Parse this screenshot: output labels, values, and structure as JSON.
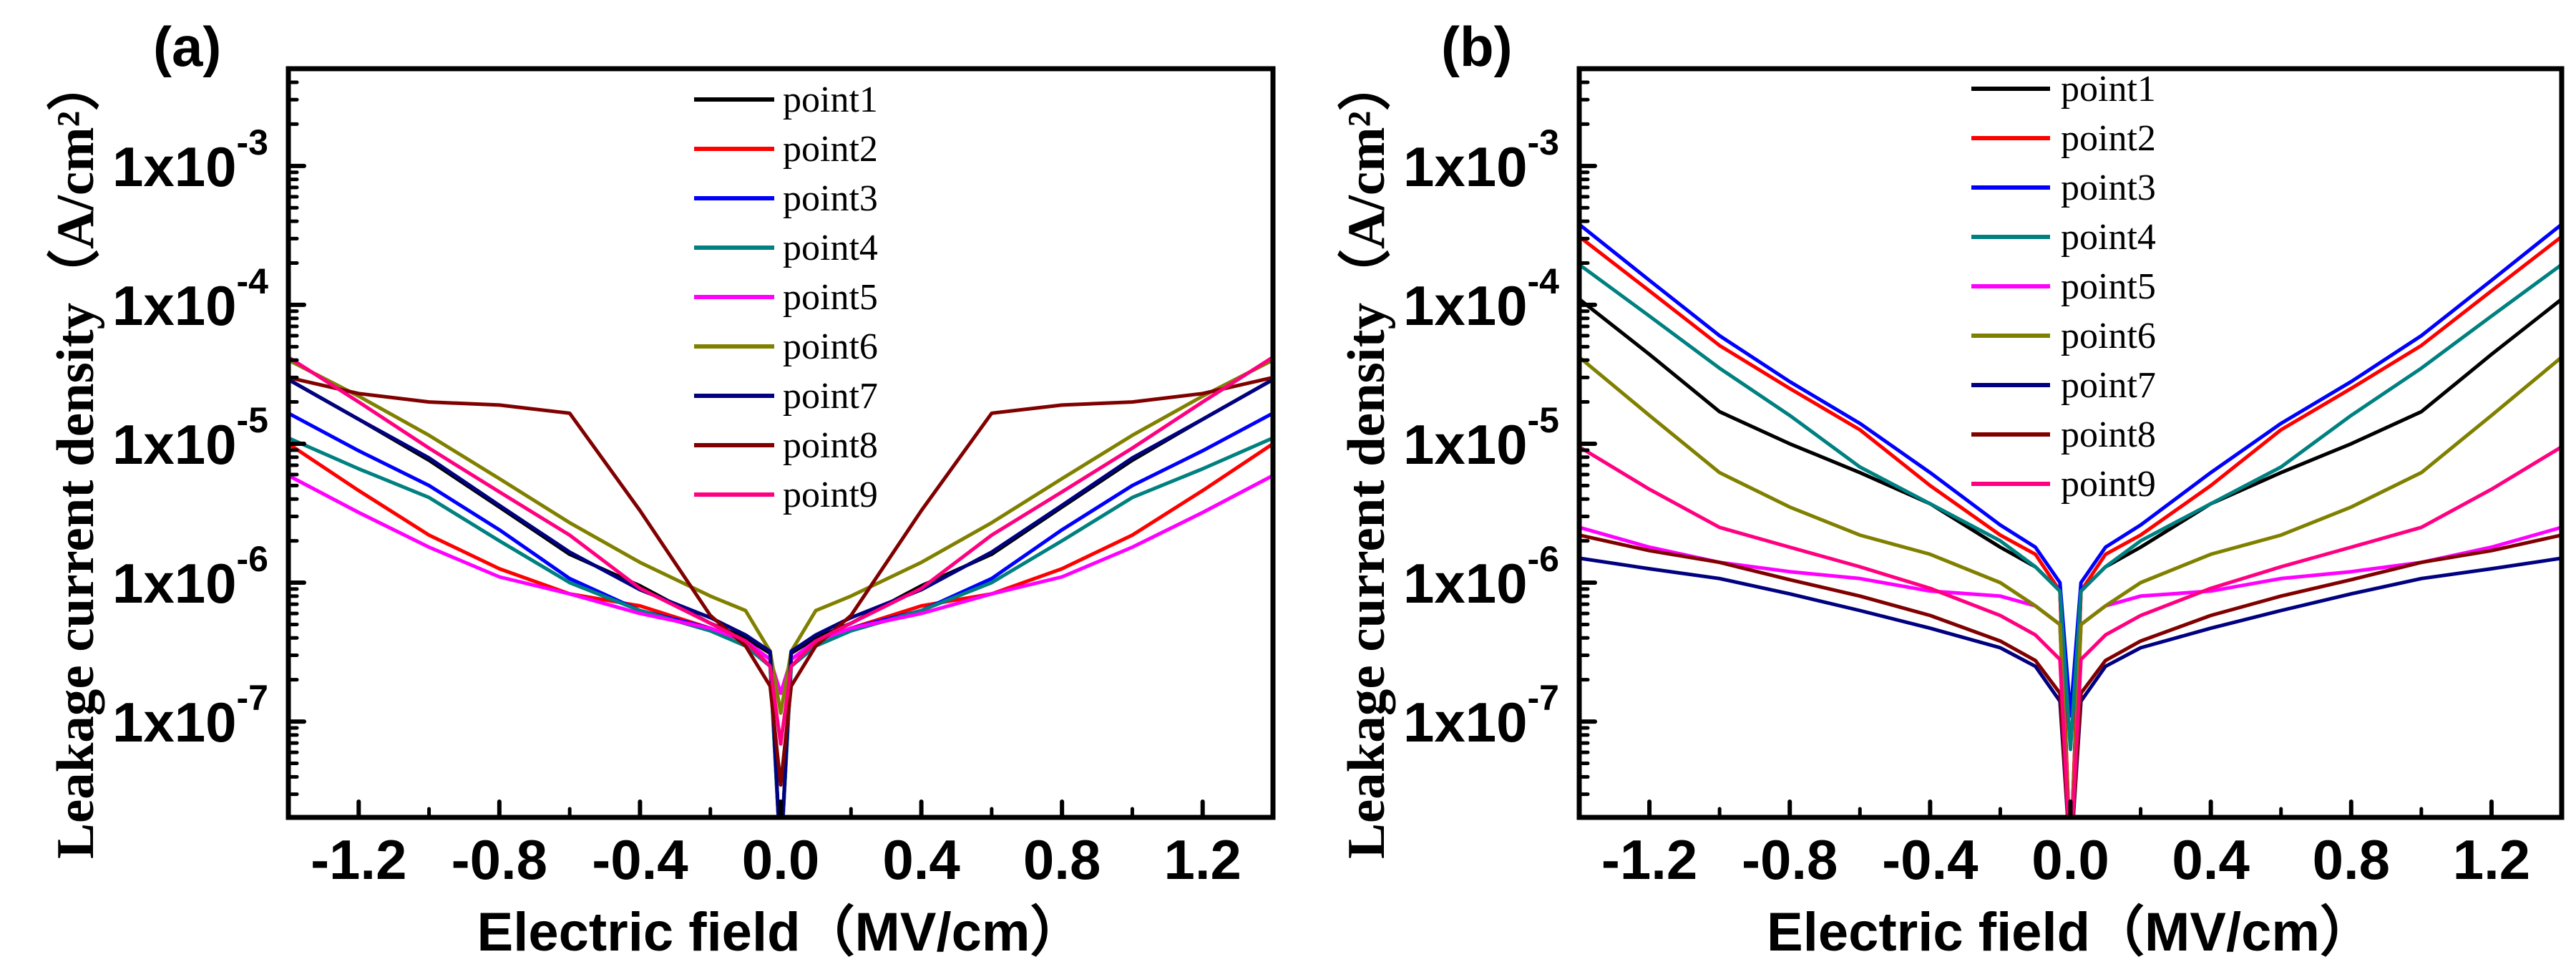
{
  "chart_data": [
    {
      "type": "line",
      "panel_label": "(a)",
      "xlabel": "Electric field（MV/cm）",
      "ylabel": "Leakage current density（A/cm²）",
      "xlim": [
        -1.4,
        1.4
      ],
      "ylim": [
        2e-08,
        0.005
      ],
      "yscale": "log",
      "xticks": [
        -1.2,
        -0.8,
        -0.4,
        0.0,
        0.4,
        0.8,
        1.2
      ],
      "xtick_labels": [
        "-1.2",
        "-0.8",
        "-0.4",
        "0.0",
        "0.4",
        "0.8",
        "1.2"
      ],
      "yticks": [
        0.001,
        0.0001,
        1e-05,
        1e-06,
        1e-07
      ],
      "ytick_labels": [
        {
          "mantissa": "1x10",
          "exp": "-3"
        },
        {
          "mantissa": "1x10",
          "exp": "-4"
        },
        {
          "mantissa": "1x10",
          "exp": "-5"
        },
        {
          "mantissa": "1x10",
          "exp": "-6"
        },
        {
          "mantissa": "1x10",
          "exp": "-7"
        }
      ],
      "legend_position": "top-center",
      "grid": false,
      "x": [
        -1.4,
        -1.2,
        -1.0,
        -0.8,
        -0.6,
        -0.4,
        -0.2,
        -0.1,
        -0.03,
        0.0,
        0.03,
        0.1,
        0.2,
        0.4,
        0.6,
        0.8,
        1.0,
        1.2,
        1.4
      ],
      "series": [
        {
          "name": "point1",
          "color": "#000000",
          "values": [
            2.9e-05,
            1.5e-05,
            7.6e-06,
            3.5e-06,
            1.6e-06,
            9.5e-07,
            5.1e-07,
            4e-07,
            3.1e-07,
            1e-08,
            3.1e-07,
            4e-07,
            5.1e-07,
            9.5e-07,
            1.6e-06,
            3.5e-06,
            7.6e-06,
            1.5e-05,
            2.9e-05
          ]
        },
        {
          "name": "point2",
          "color": "#ff0000",
          "values": [
            1e-05,
            4.6e-06,
            2.2e-06,
            1.26e-06,
            8.3e-07,
            6.8e-07,
            4.7e-07,
            3.8e-07,
            2.5e-07,
            1e-08,
            2.5e-07,
            3.8e-07,
            4.7e-07,
            6.8e-07,
            8.3e-07,
            1.26e-06,
            2.2e-06,
            4.6e-06,
            1e-05
          ]
        },
        {
          "name": "point3",
          "color": "#0000ff",
          "values": [
            1.66e-05,
            8.9e-06,
            5e-06,
            2.4e-06,
            1.07e-06,
            6.3e-07,
            4.7e-07,
            3.8e-07,
            2.8e-07,
            1e-08,
            2.8e-07,
            3.8e-07,
            4.7e-07,
            6.3e-07,
            1.07e-06,
            2.4e-06,
            5e-06,
            8.9e-06,
            1.66e-05
          ]
        },
        {
          "name": "point4",
          "color": "#008080",
          "values": [
            1.1e-05,
            6.6e-06,
            4.1e-06,
            2e-06,
            1e-06,
            6.3e-07,
            4.5e-07,
            3.5e-07,
            2.5e-07,
            1e-08,
            2.5e-07,
            3.5e-07,
            4.5e-07,
            6.3e-07,
            1e-06,
            2e-06,
            4.1e-06,
            6.6e-06,
            1.1e-05
          ]
        },
        {
          "name": "point5",
          "color": "#ff00ff",
          "values": [
            5.9e-06,
            3.2e-06,
            1.8e-06,
            1.1e-06,
            8.3e-07,
            6e-07,
            4.7e-07,
            3.8e-07,
            2.8e-07,
            1.6e-07,
            2.8e-07,
            3.8e-07,
            4.7e-07,
            6e-07,
            8.3e-07,
            1.1e-06,
            1.8e-06,
            3.2e-06,
            5.9e-06
          ]
        },
        {
          "name": "point6",
          "color": "#808000",
          "values": [
            4e-05,
            2.2e-05,
            1.15e-05,
            5.6e-06,
            2.7e-06,
            1.4e-06,
            8e-07,
            6.3e-07,
            3.2e-07,
            1.15e-07,
            3.2e-07,
            6.3e-07,
            8e-07,
            1.4e-06,
            2.7e-06,
            5.6e-06,
            1.15e-05,
            2.2e-05,
            4e-05
          ]
        },
        {
          "name": "point7",
          "color": "#000080",
          "values": [
            2.9e-05,
            1.5e-05,
            7.9e-06,
            3.6e-06,
            1.66e-06,
            8.9e-07,
            5.6e-07,
            4.2e-07,
            3.2e-07,
            1e-08,
            3.2e-07,
            4.2e-07,
            5.6e-07,
            8.9e-07,
            1.66e-06,
            3.6e-06,
            7.9e-06,
            1.5e-05,
            2.9e-05
          ]
        },
        {
          "name": "point8",
          "color": "#800000",
          "values": [
            3e-05,
            2.3e-05,
            2e-05,
            1.9e-05,
            1.66e-05,
            3.3e-06,
            5.8e-07,
            3.5e-07,
            1.8e-07,
            3.5e-08,
            1.8e-07,
            3.5e-07,
            5.8e-07,
            3.3e-06,
            1.66e-05,
            1.9e-05,
            2e-05,
            2.3e-05,
            3e-05
          ]
        },
        {
          "name": "point9",
          "color": "#ff0080",
          "values": [
            4.2e-05,
            2e-05,
            9.3e-06,
            4.5e-06,
            2.2e-06,
            9.1e-07,
            5.1e-07,
            3.8e-07,
            2.5e-07,
            6.9e-08,
            2.5e-07,
            3.8e-07,
            5.1e-07,
            9.1e-07,
            2.2e-06,
            4.5e-06,
            9.3e-06,
            2e-05,
            4.2e-05
          ]
        }
      ]
    },
    {
      "type": "line",
      "panel_label": "(b)",
      "xlabel": "Electric field（MV/cm）",
      "ylabel": "Leakage current density（A/cm²）",
      "xlim": [
        -1.4,
        1.4
      ],
      "ylim": [
        2e-08,
        0.005
      ],
      "yscale": "log",
      "xticks": [
        -1.2,
        -0.8,
        -0.4,
        0.0,
        0.4,
        0.8,
        1.2
      ],
      "xtick_labels": [
        "-1.2",
        "-0.8",
        "-0.4",
        "0.0",
        "0.4",
        "0.8",
        "1.2"
      ],
      "yticks": [
        0.001,
        0.0001,
        1e-05,
        1e-06,
        1e-07
      ],
      "ytick_labels": [
        {
          "mantissa": "1x10",
          "exp": "-3"
        },
        {
          "mantissa": "1x10",
          "exp": "-4"
        },
        {
          "mantissa": "1x10",
          "exp": "-5"
        },
        {
          "mantissa": "1x10",
          "exp": "-6"
        },
        {
          "mantissa": "1x10",
          "exp": "-7"
        }
      ],
      "legend_position": "top-center",
      "grid": false,
      "x": [
        -1.4,
        -1.2,
        -1.0,
        -0.8,
        -0.6,
        -0.4,
        -0.2,
        -0.1,
        -0.03,
        0.0,
        0.03,
        0.1,
        0.2,
        0.4,
        0.6,
        0.8,
        1.0,
        1.2,
        1.4
      ],
      "series": [
        {
          "name": "point1",
          "color": "#000000",
          "values": [
            0.00011,
            4.4e-05,
            1.7e-05,
            1e-05,
            6.2e-06,
            3.7e-06,
            1.8e-06,
            1.3e-06,
            8.7e-07,
            1e-08,
            8.7e-07,
            1.3e-06,
            1.8e-06,
            3.7e-06,
            6.2e-06,
            1e-05,
            1.7e-05,
            4.4e-05,
            0.00011
          ]
        },
        {
          "name": "point2",
          "color": "#ff0000",
          "values": [
            0.00031,
            0.000126,
            5.1e-05,
            2.5e-05,
            1.26e-05,
            5e-06,
            2.2e-06,
            1.6e-06,
            8.7e-07,
            1e-08,
            8.7e-07,
            1.6e-06,
            2.2e-06,
            5e-06,
            1.26e-05,
            2.5e-05,
            5.1e-05,
            0.000126,
            0.00031
          ]
        },
        {
          "name": "point3",
          "color": "#0000ff",
          "values": [
            0.00038,
            0.00015,
            6e-05,
            2.8e-05,
            1.4e-05,
            6.2e-06,
            2.6e-06,
            1.8e-06,
            1e-06,
            1.1e-07,
            1e-06,
            1.8e-06,
            2.6e-06,
            6.2e-06,
            1.4e-05,
            2.8e-05,
            6e-05,
            0.00015,
            0.00038
          ]
        },
        {
          "name": "point4",
          "color": "#008080",
          "values": [
            0.000195,
            8.3e-05,
            3.5e-05,
            1.6e-05,
            6.8e-06,
            3.7e-06,
            2e-06,
            1.3e-06,
            8.7e-07,
            6.3e-08,
            8.7e-07,
            1.3e-06,
            2e-06,
            3.7e-06,
            6.8e-06,
            1.6e-05,
            3.5e-05,
            8.3e-05,
            0.000195
          ]
        },
        {
          "name": "point5",
          "color": "#ff00ff",
          "values": [
            2.5e-06,
            1.8e-06,
            1.4e-06,
            1.2e-06,
            1.07e-06,
            8.7e-07,
            8e-07,
            6.8e-07,
            5e-07,
            1e-08,
            5e-07,
            6.8e-07,
            8e-07,
            8.7e-07,
            1.07e-06,
            1.2e-06,
            1.4e-06,
            1.8e-06,
            2.5e-06
          ]
        },
        {
          "name": "point6",
          "color": "#808000",
          "values": [
            4.2e-05,
            1.6e-05,
            6.2e-06,
            3.5e-06,
            2.2e-06,
            1.6e-06,
            1e-06,
            6.8e-07,
            5e-07,
            1e-08,
            5e-07,
            6.8e-07,
            1e-06,
            1.6e-06,
            2.2e-06,
            3.5e-06,
            6.2e-06,
            1.6e-05,
            4.2e-05
          ]
        },
        {
          "name": "point7",
          "color": "#000080",
          "values": [
            1.5e-06,
            1.26e-06,
            1.07e-06,
            8.3e-07,
            6.3e-07,
            4.7e-07,
            3.4e-07,
            2.5e-07,
            1.4e-07,
            1e-08,
            1.4e-07,
            2.5e-07,
            3.4e-07,
            4.7e-07,
            6.3e-07,
            8.3e-07,
            1.07e-06,
            1.26e-06,
            1.5e-06
          ]
        },
        {
          "name": "point8",
          "color": "#800000",
          "values": [
            2.2e-06,
            1.7e-06,
            1.4e-06,
            1.05e-06,
            8e-07,
            5.8e-07,
            3.8e-07,
            2.75e-07,
            1.6e-07,
            1e-08,
            1.6e-07,
            2.75e-07,
            3.8e-07,
            5.8e-07,
            8e-07,
            1.05e-06,
            1.4e-06,
            1.7e-06,
            2.2e-06
          ]
        },
        {
          "name": "point9",
          "color": "#ff0080",
          "values": [
            9.5e-06,
            4.7e-06,
            2.5e-06,
            1.8e-06,
            1.3e-06,
            9.1e-07,
            5.8e-07,
            4.2e-07,
            2.8e-07,
            1e-08,
            2.8e-07,
            4.2e-07,
            5.8e-07,
            9.1e-07,
            1.3e-06,
            1.8e-06,
            2.5e-06,
            4.7e-06,
            9.5e-06
          ]
        }
      ]
    }
  ]
}
